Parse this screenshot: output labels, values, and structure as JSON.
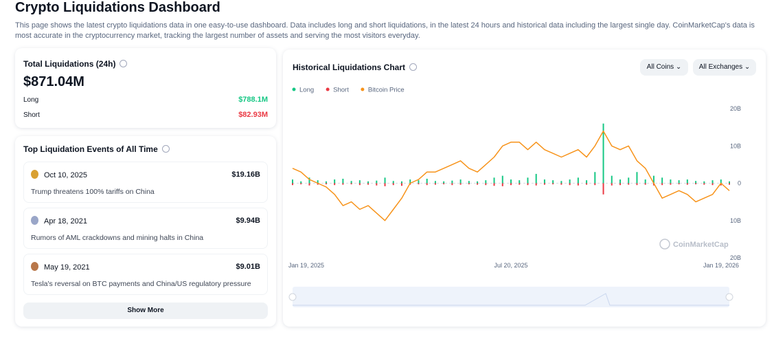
{
  "header": {
    "title": "Crypto Liquidations Dashboard",
    "description": "This page shows the latest crypto liquidations data in one easy-to-use dashboard. Data includes long and short liquidations, in the latest 24 hours and historical data including the largest single day. CoinMarketCap's data is most accurate in the cryptocurrency market, tracking the largest number of assets and serving the most visitors everyday."
  },
  "total": {
    "title": "Total Liquidations (24h)",
    "amount": "$871.04M",
    "long_label": "Long",
    "long_value": "$788.1M",
    "short_label": "Short",
    "short_value": "$82.93M"
  },
  "top_events": {
    "title": "Top Liquidation Events of All Time",
    "events": [
      {
        "date": "Oct 10, 2025",
        "amount": "$19.16B",
        "description": "Trump threatens 100% tariffs on China"
      },
      {
        "date": "Apr 18, 2021",
        "amount": "$9.94B",
        "description": "Rumors of AML crackdowns and mining halts in China"
      },
      {
        "date": "May 19, 2021",
        "amount": "$9.01B",
        "description": "Tesla's reversal on BTC payments and China/US regulatory pressure"
      }
    ],
    "button": "Show More"
  },
  "controls": {
    "coins": "All Coins",
    "exchanges": "All Exchanges"
  },
  "chart_data": {
    "type": "combo",
    "title": "Historical Liquidations Chart",
    "watermark": "CoinMarketCap",
    "categories": [
      "Jan 19, 2025",
      null,
      null,
      null,
      null,
      null,
      null,
      null,
      null,
      null,
      null,
      null,
      null,
      null,
      null,
      null,
      null,
      null,
      null,
      null,
      null,
      null,
      null,
      null,
      null,
      null,
      "Jul 20, 2025",
      null,
      null,
      null,
      null,
      null,
      null,
      null,
      null,
      null,
      null,
      null,
      null,
      null,
      null,
      null,
      null,
      null,
      null,
      null,
      null,
      null,
      null,
      null,
      null,
      null,
      "Jan 19, 2026"
    ],
    "series": [
      {
        "name": "Long",
        "type": "bar",
        "color": "#16c784",
        "values": [
          1,
          0.5,
          1.5,
          0.8,
          0.5,
          1,
          1.2,
          0.6,
          0.8,
          0.5,
          0.7,
          1.5,
          0.6,
          0.5,
          1,
          0.8,
          1.2,
          0.6,
          0.5,
          0.7,
          1,
          0.6,
          0.5,
          0.8,
          1.5,
          2,
          1,
          0.8,
          1.5,
          2.5,
          1,
          0.8,
          0.6,
          1,
          1.5,
          0.8,
          3,
          16,
          2,
          1,
          1.5,
          3,
          1,
          2,
          1.5,
          1,
          0.8,
          1,
          0.6,
          0.5,
          0.8,
          1,
          0.5
        ]
      },
      {
        "name": "Short",
        "type": "bar",
        "color": "#ea3943",
        "values": [
          -0.5,
          -0.3,
          -0.6,
          -0.4,
          -0.3,
          -0.5,
          -0.4,
          -0.3,
          -0.5,
          -0.4,
          -0.6,
          -0.8,
          -0.5,
          -0.7,
          -0.4,
          -0.3,
          -0.5,
          -0.4,
          -0.3,
          -0.5,
          -0.4,
          -0.3,
          -0.4,
          -0.5,
          -0.7,
          -0.8,
          -0.5,
          -0.4,
          -0.5,
          -0.6,
          -0.4,
          -0.3,
          -0.4,
          -0.5,
          -0.6,
          -0.4,
          -0.5,
          -3,
          -0.6,
          -0.5,
          -0.4,
          -0.5,
          -0.4,
          -0.6,
          -0.5,
          -0.4,
          -0.3,
          -0.4,
          -0.3,
          -0.4,
          -0.5,
          -0.6,
          -0.4
        ]
      },
      {
        "name": "Bitcoin Price",
        "type": "line",
        "color": "#f7931a",
        "values": [
          4,
          3,
          1,
          0,
          -1,
          -3,
          -6,
          -5,
          -7,
          -6,
          -8,
          -10,
          -7,
          -4,
          0,
          1,
          3,
          3,
          4,
          5,
          6,
          4,
          3,
          5,
          7,
          10,
          11,
          11,
          9,
          11,
          9,
          8,
          7,
          8,
          9,
          7,
          10,
          14,
          10,
          9,
          10,
          6,
          4,
          0,
          -4,
          -3,
          -2,
          -3,
          -5,
          -4,
          -3,
          0,
          -2
        ]
      }
    ],
    "ylim": [
      -20,
      20
    ],
    "yticks": [
      {
        "value": -20,
        "label": "20B"
      },
      {
        "value": -10,
        "label": "10B"
      },
      0,
      {
        "value": 10,
        "label": "10B"
      },
      {
        "value": 20,
        "label": "20B"
      }
    ],
    "grid": false
  }
}
